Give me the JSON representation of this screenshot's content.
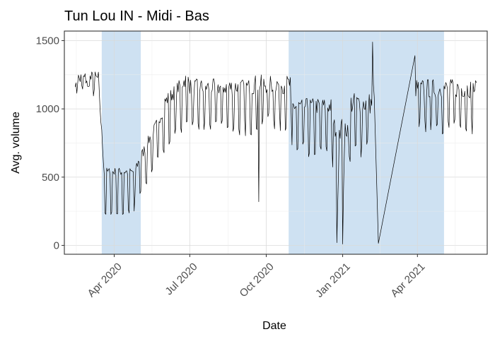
{
  "chart_data": {
    "type": "line",
    "title": "Tun Lou IN - Midi - Bas",
    "xlabel": "Date",
    "ylabel": "Avg. volume",
    "x_range": [
      "2020-02-01",
      "2021-06-24"
    ],
    "ylim": [
      -65,
      1570
    ],
    "y_ticks": [
      0,
      500,
      1000,
      1500
    ],
    "x_ticks": [
      {
        "date": "2020-04-01",
        "label": "Apr 2020"
      },
      {
        "date": "2020-07-01",
        "label": "Jul 2020"
      },
      {
        "date": "2020-10-01",
        "label": "Oct 2020"
      },
      {
        "date": "2021-01-01",
        "label": "Jan 2021"
      },
      {
        "date": "2021-04-01",
        "label": "Apr 2021"
      }
    ],
    "grid": true,
    "highlight_color": "#a6c8e8",
    "line_color": "#000000",
    "shaded_periods": [
      {
        "start": "2020-03-17",
        "end": "2020-05-03"
      },
      {
        "start": "2020-10-28",
        "end": "2021-05-03"
      }
    ],
    "segments": [
      {
        "start": "2020-02-14",
        "end": "2020-03-13",
        "weekday": 1220,
        "weekend": 1140,
        "noise": 60
      },
      {
        "start": "2020-03-14",
        "end": "2020-03-20",
        "from": 1100,
        "to": 540,
        "noise": 40
      },
      {
        "start": "2020-03-21",
        "end": "2020-04-25",
        "weekday": 540,
        "weekend": 240,
        "noise": 30
      },
      {
        "start": "2020-04-26",
        "end": "2020-05-31",
        "weekday_from": 560,
        "weekday_to": 1000,
        "weekend_from": 330,
        "weekend_to": 700,
        "noise": 40
      },
      {
        "start": "2020-06-01",
        "end": "2020-06-30",
        "weekday_from": 1050,
        "weekday_to": 1240,
        "weekend_from": 740,
        "weekend_to": 900,
        "noise": 50
      },
      {
        "start": "2020-07-01",
        "end": "2020-09-15",
        "weekday": 1160,
        "weekend": 860,
        "noise": 60
      },
      {
        "start": "2020-09-16",
        "end": "2020-10-31",
        "weekday": 1180,
        "weekend": 900,
        "noise": 70
      },
      {
        "start": "2020-11-01",
        "end": "2020-12-19",
        "weekday": 1020,
        "weekend": 700,
        "noise": 60
      },
      {
        "start": "2020-12-20",
        "end": "2021-01-10",
        "weekday": 860,
        "weekend": 600,
        "noise": 80
      },
      {
        "start": "2021-01-11",
        "end": "2021-02-08",
        "weekday": 1040,
        "weekend": 720,
        "noise": 80
      },
      {
        "start": "2021-03-30",
        "end": "2021-06-11",
        "weekday": 1150,
        "weekend": 880,
        "noise": 70
      }
    ],
    "special_points": [
      {
        "date": "2020-09-22",
        "value": 320
      },
      {
        "date": "2020-12-25",
        "value": 20
      },
      {
        "date": "2020-12-26",
        "value": 300
      },
      {
        "date": "2021-01-01",
        "value": 10
      },
      {
        "date": "2021-01-02",
        "value": 400
      },
      {
        "date": "2021-02-06",
        "value": 1490
      },
      {
        "date": "2021-02-07",
        "value": 1180
      },
      {
        "date": "2021-02-13",
        "value": 15
      },
      {
        "date": "2021-03-29",
        "value": 1390
      }
    ]
  }
}
